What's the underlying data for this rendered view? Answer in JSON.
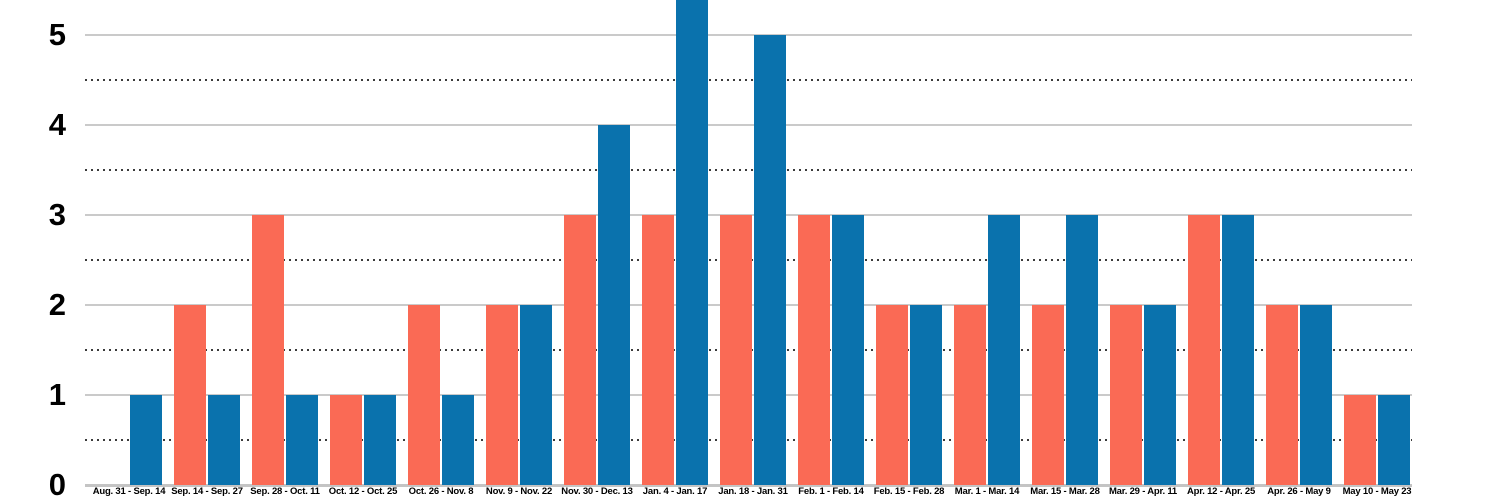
{
  "chart_data": {
    "type": "bar",
    "title": "",
    "subtitle": "",
    "xlabel": "",
    "ylabel": "",
    "legend_position": "none",
    "categories": [
      "Aug. 31 - Sep. 14",
      "Sep. 14 - Sep. 27",
      "Sep. 28 - Oct. 11",
      "Oct. 12 - Oct. 25",
      "Oct. 26 - Nov. 8",
      "Nov. 9 - Nov. 22",
      "Nov. 30 - Dec. 13",
      "Jan. 4 - Jan. 17",
      "Jan. 18 - Jan. 31",
      "Feb. 1 - Feb. 14",
      "Feb. 15 - Feb. 28",
      "Mar. 1 - Mar. 14",
      "Mar. 15 - Mar. 28",
      "Mar. 29 - Apr. 11",
      "Apr. 12 - Apr. 25",
      "Apr. 26 - May 9",
      "May 10 - May 23"
    ],
    "series": [
      {
        "name": "red",
        "color": "#FA6A55",
        "values": [
          0,
          2,
          3,
          1,
          2,
          2,
          3,
          3,
          3,
          3,
          2,
          2,
          2,
          2,
          3,
          2,
          1
        ]
      },
      {
        "name": "blue",
        "color": "#0A72AD",
        "values": [
          1,
          1,
          1,
          1,
          1,
          2,
          4,
          6,
          5,
          3,
          2,
          3,
          3,
          2,
          3,
          2,
          1
        ]
      }
    ],
    "y_ticks": [
      0,
      1,
      2,
      3,
      4,
      5
    ],
    "ylim": [
      0,
      5.4
    ],
    "grid": {
      "major": "solid light-gray horizontal lines at each integer",
      "minor": "dotted dark-gray horizontal lines at each half step"
    },
    "note": "Blue bar for Jan. 4 - Jan. 17 is clipped by the top edge of the visible area (estimated value 6)."
  },
  "colors": {
    "background": "#ffffff",
    "grid_major": "#cacaca",
    "grid_minor": "#3b3b3b",
    "axis_line": "#c4c4c4",
    "text": "#000000"
  }
}
